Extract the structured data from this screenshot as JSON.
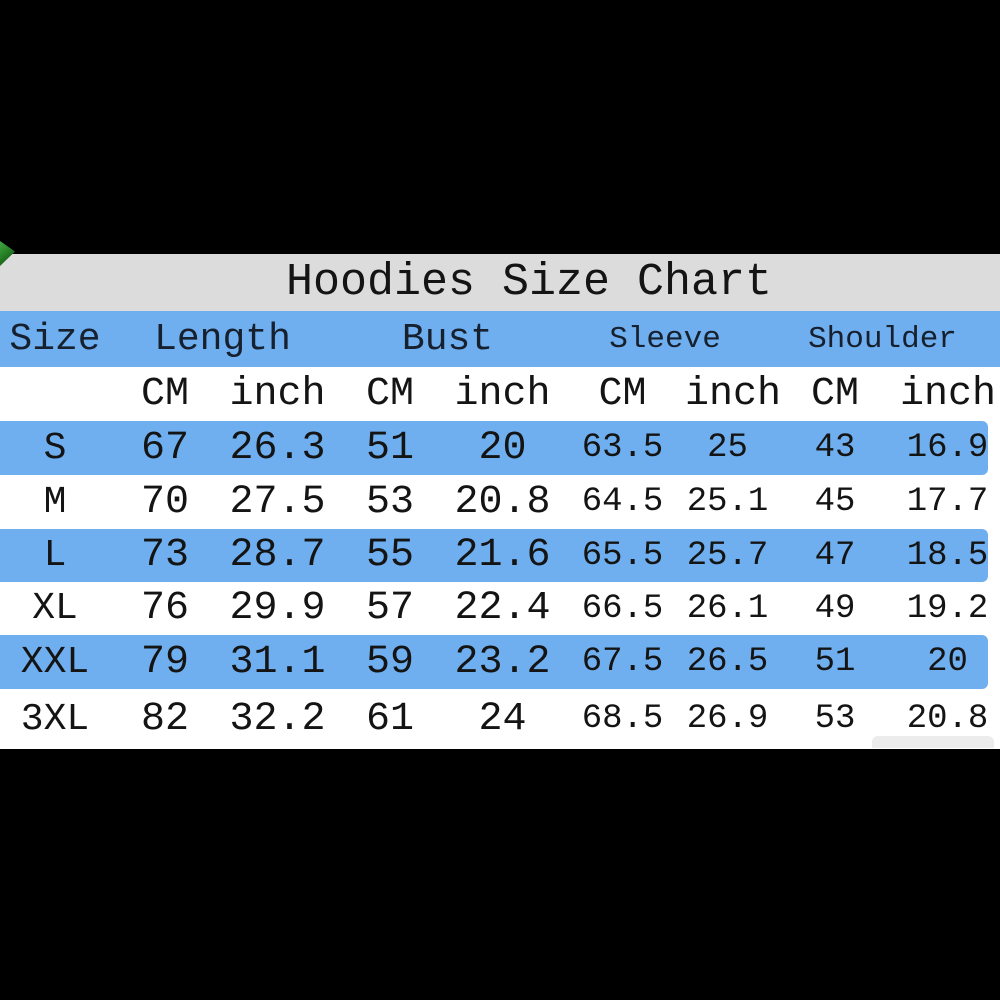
{
  "page": {
    "background_color": "#000000"
  },
  "panel": {
    "background_color": "#ffffff",
    "title_band_color": "#dcdcdc",
    "stripe_blue": "#6fafef",
    "text_color": "#141414"
  },
  "decorations": {
    "corner_wedge_color": "#2b8a2b",
    "watermark_smudge_color": "rgba(185,185,185,0.28)"
  },
  "chart_data": {
    "type": "table",
    "title": "Hoodies Size Chart",
    "col_groups": [
      {
        "label": "Size",
        "cols": 1
      },
      {
        "label": "Length",
        "cols": 2
      },
      {
        "label": "Bust",
        "cols": 2
      },
      {
        "label": "Sleeve",
        "cols": 2
      },
      {
        "label": "Shoulder",
        "cols": 2
      }
    ],
    "subheaders": [
      "",
      "CM",
      "inch",
      "CM",
      "inch",
      "CM",
      "inch",
      "CM",
      "inch"
    ],
    "columns": [
      "size",
      "length_cm",
      "length_inch",
      "bust_cm",
      "bust_inch",
      "sleeve_cm",
      "sleeve_inch",
      "shoulder_cm",
      "shoulder_inch"
    ],
    "rows": [
      [
        "S",
        67,
        26.3,
        51,
        20,
        63.5,
        25,
        43,
        16.9
      ],
      [
        "M",
        70,
        27.5,
        53,
        20.8,
        64.5,
        25.1,
        45,
        17.7
      ],
      [
        "L",
        73,
        28.7,
        55,
        21.6,
        65.5,
        25.7,
        47,
        18.5
      ],
      [
        "XL",
        76,
        29.9,
        57,
        22.4,
        66.5,
        26.1,
        49,
        19.2
      ],
      [
        "XXL",
        79,
        31.1,
        59,
        23.2,
        67.5,
        26.5,
        51,
        20
      ],
      [
        "3XL",
        82,
        32.2,
        61,
        24,
        68.5,
        26.9,
        53,
        20.8
      ]
    ],
    "striped_rows": [
      "S",
      "L",
      "XXL"
    ],
    "layout_hints": {
      "legend": "none",
      "grid": "off",
      "row_striping": "alternating blue/white"
    }
  }
}
